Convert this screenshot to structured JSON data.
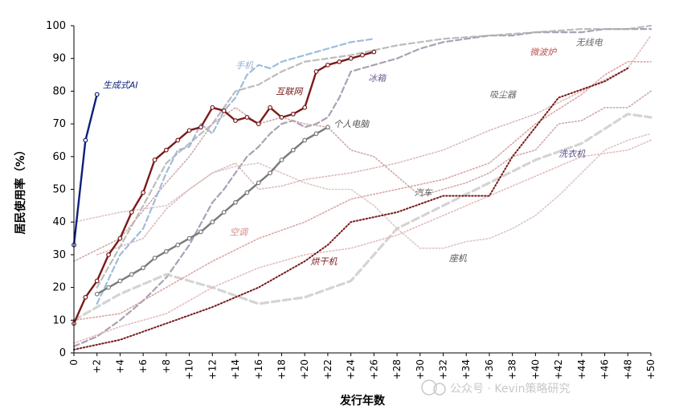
{
  "chart_data": {
    "type": "line",
    "ylabel": "居民使用率（%）",
    "xlabel": "发行年数",
    "ylim": [
      0,
      100
    ],
    "xlim": [
      0,
      50
    ],
    "yticks": [
      "0",
      "10",
      "20",
      "30",
      "40",
      "50",
      "60",
      "70",
      "80",
      "90",
      "100"
    ],
    "xticks": [
      "0",
      "+2",
      "+4",
      "+6",
      "+8",
      "+10",
      "+12",
      "+14",
      "+16",
      "+18",
      "+20",
      "+22",
      "+24",
      "+26",
      "+28",
      "+30",
      "+32",
      "+34",
      "+36",
      "+38",
      "+40",
      "+42",
      "+44",
      "+46",
      "+48",
      "+50"
    ],
    "grid": false,
    "series": [
      {
        "name": "生成式AI",
        "color": "#0d1f7a",
        "style": "solid-marker",
        "x": [
          0,
          1,
          2
        ],
        "values": [
          33,
          65,
          79
        ]
      },
      {
        "name": "个人电脑",
        "color": "#7a7a7a",
        "style": "solid-marker",
        "x": [
          2,
          3,
          4,
          5,
          6,
          7,
          8,
          9,
          10,
          11,
          12,
          13,
          14,
          15,
          16,
          17,
          18,
          19,
          20,
          21,
          22
        ],
        "values": [
          18,
          20,
          22,
          24,
          26,
          29,
          31,
          33,
          35,
          37,
          40,
          43,
          46,
          49,
          52,
          55,
          59,
          62,
          65,
          67,
          69
        ]
      },
      {
        "name": "互联网",
        "color": "#7a1a1a",
        "style": "solid-marker",
        "x": [
          0,
          1,
          2,
          3,
          4,
          5,
          6,
          7,
          8,
          9,
          10,
          11,
          12,
          13,
          14,
          15,
          16,
          17,
          18,
          19,
          20,
          21,
          22,
          23,
          24,
          25,
          26
        ],
        "values": [
          9,
          17,
          22,
          30,
          35,
          43,
          49,
          59,
          62,
          65,
          68,
          69,
          75,
          74,
          71,
          72,
          70,
          75,
          72,
          73,
          75,
          86,
          88,
          89,
          90,
          91,
          92
        ]
      },
      {
        "name": "手机",
        "color": "#8fb0d6",
        "style": "dashed",
        "x": [
          2,
          4,
          5,
          6,
          8,
          9,
          10,
          11,
          12,
          13,
          14,
          15,
          16,
          17,
          18,
          19,
          20,
          22,
          24,
          26
        ],
        "values": [
          15,
          30,
          34,
          38,
          55,
          62,
          63,
          70,
          67,
          74,
          78,
          85,
          88,
          87,
          89,
          90,
          91,
          93,
          95,
          96
        ]
      },
      {
        "name": "冰箱",
        "color": "#9a90a8",
        "style": "dashed",
        "x": [
          0,
          2,
          4,
          6,
          8,
          10,
          12,
          13,
          14,
          15,
          16,
          17,
          18,
          19,
          20,
          21,
          22,
          23,
          24,
          25,
          26,
          28,
          30,
          32,
          34,
          36,
          38,
          40,
          42,
          44,
          46,
          48,
          50
        ],
        "values": [
          2,
          5,
          10,
          16,
          23,
          33,
          46,
          50,
          55,
          60,
          63,
          67,
          70,
          71,
          69,
          70,
          72,
          78,
          86,
          87,
          88,
          90,
          93,
          95,
          96,
          97,
          97,
          98,
          98,
          98,
          99,
          99,
          99
        ]
      },
      {
        "name": "洗衣机",
        "color": "#cccccc",
        "style": "dashed-thick",
        "x": [
          0,
          4,
          8,
          12,
          16,
          20,
          24,
          28,
          32,
          36,
          40,
          44,
          48,
          50
        ],
        "values": [
          10,
          18,
          24,
          20,
          15,
          17,
          22,
          38,
          45,
          52,
          59,
          64,
          73,
          72
        ]
      },
      {
        "name": "无线电",
        "color": "#b0b0b0",
        "style": "dashed",
        "x": [
          2,
          6,
          8,
          10,
          12,
          14,
          16,
          18,
          20,
          24,
          28,
          32,
          36,
          40,
          44,
          48,
          50
        ],
        "values": [
          20,
          45,
          58,
          64,
          70,
          80,
          82,
          86,
          89,
          91,
          94,
          96,
          97,
          98,
          99,
          99,
          100
        ]
      },
      {
        "name": "微波炉",
        "color": "#d59a9a",
        "style": "dotted",
        "x": [
          0,
          4,
          8,
          12,
          16,
          20,
          24,
          28,
          32,
          36,
          40,
          44,
          46,
          48,
          50
        ],
        "values": [
          10,
          12,
          20,
          28,
          35,
          40,
          47,
          50,
          53,
          58,
          70,
          79,
          85,
          89,
          89
        ]
      },
      {
        "name": "吸尘器",
        "color": "#d9b0b0",
        "style": "dotted",
        "x": [
          2,
          6,
          8,
          10,
          12,
          14,
          16,
          18,
          20,
          24,
          28,
          32,
          36,
          40,
          44,
          48,
          50
        ],
        "values": [
          30,
          35,
          44,
          50,
          55,
          58,
          50,
          51,
          53,
          55,
          58,
          62,
          68,
          73,
          80,
          87,
          97
        ]
      },
      {
        "name": "汽车",
        "color": "#c8a0a0",
        "style": "dotted",
        "x": [
          0,
          4,
          8,
          10,
          12,
          14,
          16,
          18,
          20,
          22,
          24,
          26,
          28,
          30,
          32,
          34,
          36,
          38,
          40,
          42,
          44,
          46,
          48,
          50
        ],
        "values": [
          28,
          35,
          52,
          60,
          70,
          75,
          70,
          72,
          70,
          69,
          62,
          60,
          54,
          48,
          50,
          52,
          55,
          60,
          62,
          70,
          71,
          75,
          75,
          80
        ]
      },
      {
        "name": "空调",
        "color": "#e2b4b4",
        "style": "dotted",
        "x": [
          0,
          4,
          8,
          12,
          16,
          20,
          24,
          28,
          32,
          36,
          40,
          44,
          48,
          50
        ],
        "values": [
          3,
          8,
          12,
          20,
          26,
          30,
          32,
          36,
          42,
          48,
          54,
          60,
          62,
          65
        ]
      },
      {
        "name": "座机",
        "color": "#d8c0c0",
        "style": "dotted",
        "x": [
          0,
          4,
          8,
          10,
          12,
          14,
          16,
          18,
          20,
          22,
          24,
          26,
          28,
          30,
          32,
          34,
          36,
          38,
          40,
          42,
          44,
          46,
          48,
          50
        ],
        "values": [
          40,
          43,
          45,
          50,
          55,
          57,
          58,
          55,
          52,
          50,
          50,
          45,
          38,
          32,
          32,
          34,
          35,
          38,
          42,
          48,
          55,
          62,
          65,
          67
        ]
      },
      {
        "name": "烘干机",
        "color": "#7a1a1a",
        "style": "dotted-thick",
        "x": [
          0,
          4,
          8,
          12,
          16,
          20,
          22,
          24,
          28,
          32,
          36,
          38,
          42,
          46,
          48
        ],
        "values": [
          1,
          4,
          9,
          14,
          20,
          28,
          33,
          40,
          43,
          48,
          48,
          60,
          78,
          83,
          87
        ]
      }
    ],
    "annotations": [
      {
        "text": "生成式AI",
        "x": 2.5,
        "y": 81,
        "color": "#0d1f7a"
      },
      {
        "text": "手机",
        "x": 14,
        "y": 87,
        "color": "#8fb0d6"
      },
      {
        "text": "互联网",
        "x": 17.5,
        "y": 79,
        "color": "#7a1a1a"
      },
      {
        "text": "冰箱",
        "x": 25.5,
        "y": 83,
        "color": "#6e5e8e"
      },
      {
        "text": "个人电脑",
        "x": 22.5,
        "y": 69,
        "color": "#555555"
      },
      {
        "text": "微波炉",
        "x": 39.5,
        "y": 91,
        "color": "#c05050"
      },
      {
        "text": "无线电",
        "x": 43.5,
        "y": 94,
        "color": "#666666"
      },
      {
        "text": "吸尘器",
        "x": 36,
        "y": 78,
        "color": "#666666"
      },
      {
        "text": "洗衣机",
        "x": 42,
        "y": 60,
        "color": "#5a4a8a"
      },
      {
        "text": "汽车",
        "x": 29.5,
        "y": 48,
        "color": "#555555"
      },
      {
        "text": "空调",
        "x": 13.5,
        "y": 36,
        "color": "#d58a8a"
      },
      {
        "text": "座机",
        "x": 32.5,
        "y": 28,
        "color": "#555555"
      },
      {
        "text": "烘干机",
        "x": 20.5,
        "y": 27,
        "color": "#7a1a1a"
      }
    ]
  },
  "watermark": "公众号 · Kevin策略研究"
}
